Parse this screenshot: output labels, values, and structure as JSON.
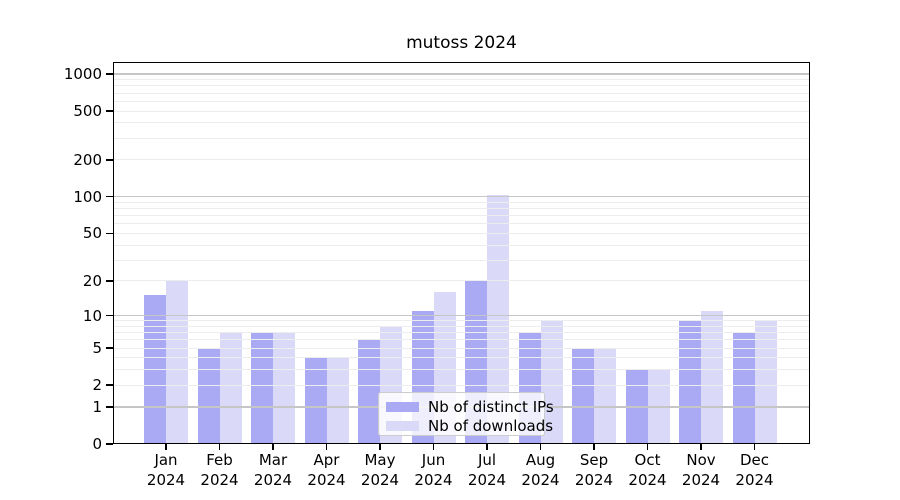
{
  "chart_data": {
    "type": "bar",
    "title": "mutoss 2024",
    "categories": [
      "Jan",
      "Feb",
      "Mar",
      "Apr",
      "May",
      "Jun",
      "Jul",
      "Aug",
      "Sep",
      "Oct",
      "Nov",
      "Dec"
    ],
    "category_year": "2024",
    "series": [
      {
        "name": "Nb of distinct IPs",
        "color": "#a9a9f4",
        "values": [
          15,
          5,
          7,
          4,
          6,
          11,
          20,
          7,
          5,
          3,
          9,
          7
        ]
      },
      {
        "name": "Nb of downloads",
        "color": "#dadaf8",
        "values": [
          20,
          7,
          7,
          4,
          8,
          16,
          104,
          9,
          5,
          3,
          11,
          9
        ]
      }
    ],
    "yscale": "log1p",
    "ylim": [
      0,
      1250
    ],
    "y_ticks": [
      0,
      1,
      2,
      5,
      10,
      20,
      50,
      100,
      200,
      500,
      1000
    ],
    "grid": "on",
    "legend_position": "bottom-center",
    "colors": {
      "major_grid": "#c6c6c6",
      "minor_grid": "#ededed",
      "axis": "#000000",
      "background": "#ffffff"
    }
  }
}
